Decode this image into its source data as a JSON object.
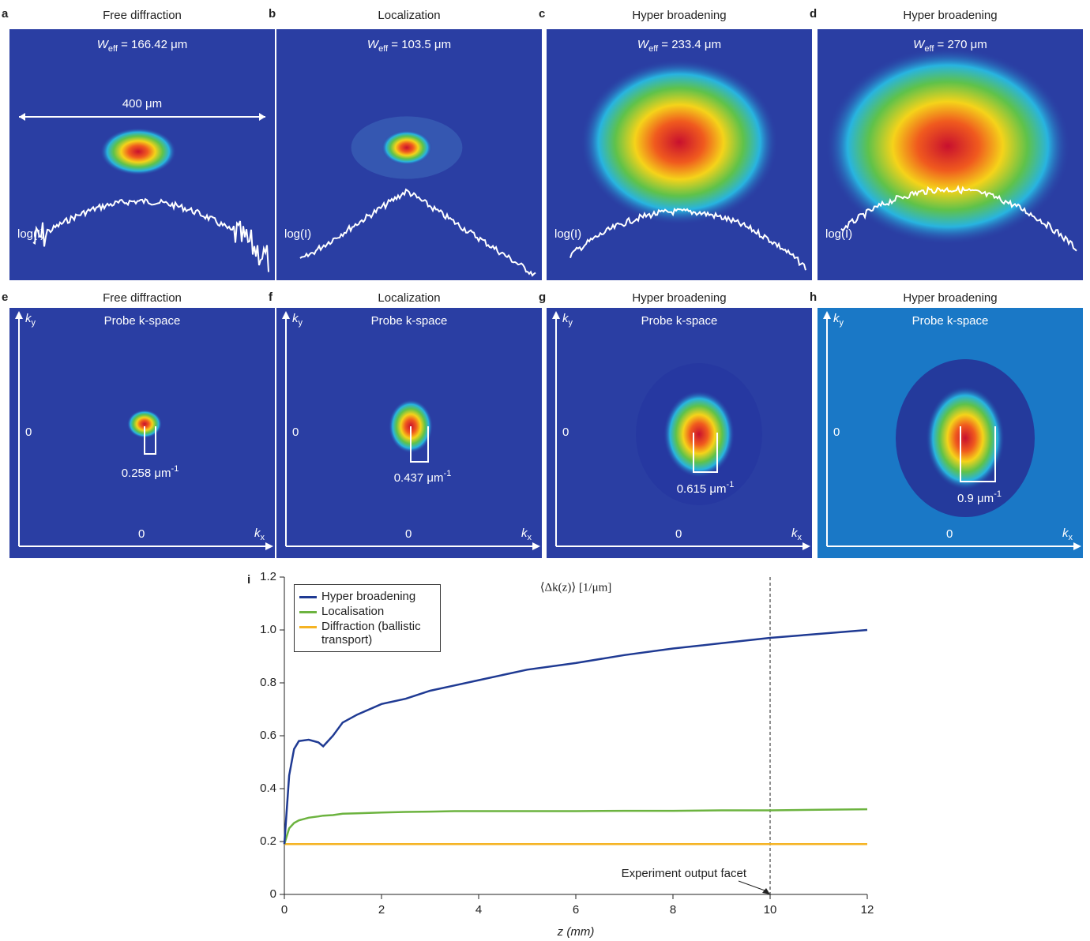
{
  "panels_top": [
    {
      "letter": "a",
      "title": "Free diffraction",
      "weff": {
        "main": "W",
        "sub": "eff",
        "rest": " = 166.42 μm"
      },
      "scale": "400 μm",
      "log": "log(I)"
    },
    {
      "letter": "b",
      "title": "Localization",
      "weff": {
        "main": "W",
        "sub": "eff",
        "rest": " = 103.5 μm"
      },
      "log": "log(I)"
    },
    {
      "letter": "c",
      "title": "Hyper broadening",
      "weff": {
        "main": "W",
        "sub": "eff",
        "rest": " = 233.4 μm"
      },
      "log": "log(I)"
    },
    {
      "letter": "d",
      "title": "Hyper broadening",
      "weff": {
        "main": "W",
        "sub": "eff",
        "rest": " = 270 μm"
      },
      "log": "log(I)"
    }
  ],
  "panels_bottom": [
    {
      "letter": "e",
      "title": "Free diffraction",
      "subtitle": "Probe k-space",
      "ky": {
        "main": "k",
        "sub": "y"
      },
      "kx": {
        "main": "k",
        "sub": "x"
      },
      "zero_y": "0",
      "zero_x": "0",
      "width": {
        "main": "0.258 μm",
        "sup": "-1"
      }
    },
    {
      "letter": "f",
      "title": "Localization",
      "subtitle": "Probe k-space",
      "ky": {
        "main": "k",
        "sub": "y"
      },
      "kx": {
        "main": "k",
        "sub": "x"
      },
      "zero_y": "0",
      "zero_x": "0",
      "width": {
        "main": "0.437 μm",
        "sup": "-1"
      }
    },
    {
      "letter": "g",
      "title": "Hyper broadening",
      "subtitle": "Probe k-space",
      "ky": {
        "main": "k",
        "sub": "y"
      },
      "kx": {
        "main": "k",
        "sub": "x"
      },
      "zero_y": "0",
      "zero_x": "0",
      "width": {
        "main": "0.615 μm",
        "sup": "-1"
      }
    },
    {
      "letter": "h",
      "title": "Hyper broadening",
      "subtitle": "Probe k-space",
      "ky": {
        "main": "k",
        "sub": "y"
      },
      "kx": {
        "main": "k",
        "sub": "x"
      },
      "zero_y": "0",
      "zero_x": "0",
      "width": {
        "main": "0.9 μm",
        "sup": "-1"
      }
    }
  ],
  "chart_data": {
    "type": "line",
    "letter": "i",
    "title": "⟨Δk(z)⟩ [1/μm]",
    "x_label": "z (mm)",
    "x": [
      0,
      0.1,
      0.2,
      0.3,
      0.5,
      0.7,
      0.8,
      1,
      1.2,
      1.5,
      2,
      2.5,
      3,
      3.5,
      4,
      5,
      6,
      7,
      8,
      9,
      10,
      11,
      12
    ],
    "series": [
      {
        "name": "Hyper broadening",
        "color": "#1f3a93",
        "values": [
          0.19,
          0.45,
          0.55,
          0.58,
          0.585,
          0.575,
          0.56,
          0.6,
          0.65,
          0.68,
          0.72,
          0.74,
          0.77,
          0.79,
          0.81,
          0.85,
          0.875,
          0.905,
          0.93,
          0.95,
          0.97,
          0.985,
          1.0
        ]
      },
      {
        "name": "Localisation",
        "color": "#6cb33f",
        "values": [
          0.19,
          0.25,
          0.27,
          0.28,
          0.29,
          0.295,
          0.298,
          0.3,
          0.305,
          0.307,
          0.31,
          0.312,
          0.313,
          0.315,
          0.315,
          0.315,
          0.315,
          0.316,
          0.316,
          0.318,
          0.318,
          0.32,
          0.322
        ]
      },
      {
        "name": "Diffraction (ballistic transport)",
        "color": "#f5b323",
        "values": [
          0.19,
          0.19,
          0.19,
          0.19,
          0.19,
          0.19,
          0.19,
          0.19,
          0.19,
          0.19,
          0.19,
          0.19,
          0.19,
          0.19,
          0.19,
          0.19,
          0.19,
          0.19,
          0.19,
          0.19,
          0.19,
          0.19,
          0.19
        ]
      }
    ],
    "xlim": [
      0,
      12
    ],
    "xticks": [
      0,
      2,
      4,
      6,
      8,
      10,
      12
    ],
    "ylim": [
      0,
      1.2
    ],
    "yticks": [
      0,
      0.2,
      0.4,
      0.6,
      0.8,
      {
        "value": 1,
        "label": "1.0"
      },
      1.2
    ],
    "legend": "upper left",
    "facet_x": 10,
    "annotation": "Experiment output facet"
  }
}
